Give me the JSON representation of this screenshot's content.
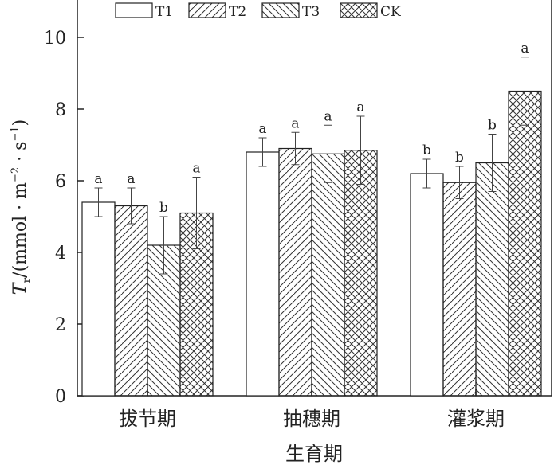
{
  "chart_data": {
    "type": "bar",
    "title": "",
    "xlabel": "生育期",
    "ylabel": "T_r/(mmol·m^-2·s^-1)",
    "ylabel_parts": {
      "symbol": "T",
      "sub": "r",
      "unit_open": "/(mmol · m",
      "exp1": "−2",
      "mid": " · s",
      "exp2": "−1",
      "close": ")"
    },
    "ylim": [
      0,
      11
    ],
    "yticks": [
      0,
      2,
      4,
      6,
      8,
      10
    ],
    "categories": [
      "拔节期",
      "抽穗期",
      "灌浆期"
    ],
    "legend_position": "top",
    "series": [
      {
        "name": "T1",
        "pattern": "none",
        "values": [
          5.4,
          6.8,
          6.2
        ],
        "errors": [
          0.4,
          0.4,
          0.4
        ],
        "labels": [
          "a",
          "a",
          "b"
        ]
      },
      {
        "name": "T2",
        "pattern": "diag-up",
        "values": [
          5.3,
          6.9,
          5.95
        ],
        "errors": [
          0.5,
          0.45,
          0.45
        ],
        "labels": [
          "a",
          "a",
          "b"
        ]
      },
      {
        "name": "T3",
        "pattern": "diag-down",
        "values": [
          4.2,
          6.75,
          6.5
        ],
        "errors": [
          0.8,
          0.8,
          0.8
        ],
        "labels": [
          "b",
          "a",
          "b"
        ]
      },
      {
        "name": "CK",
        "pattern": "cross",
        "values": [
          5.1,
          6.85,
          8.5
        ],
        "errors": [
          1.0,
          0.95,
          0.95
        ],
        "labels": [
          "a",
          "a",
          "a"
        ]
      }
    ]
  }
}
